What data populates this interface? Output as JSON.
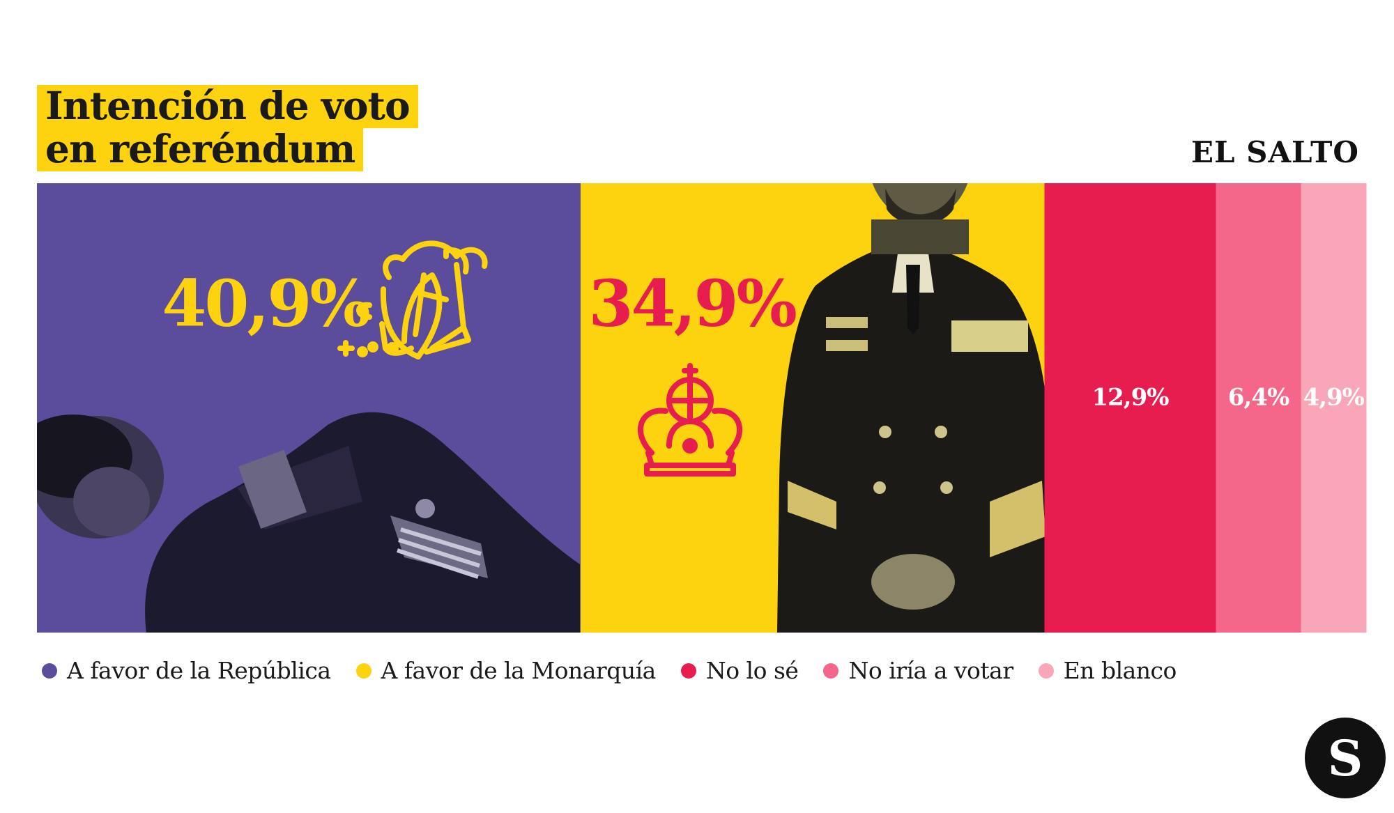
{
  "title": {
    "line1": "Intención de voto",
    "line2": "en referéndum"
  },
  "brand": "EL SALTO",
  "logo_letter": "S",
  "chart_data": {
    "type": "bar",
    "orientation": "horizontal-stacked",
    "title": "Intención de voto en referéndum",
    "categories": [
      "A favor de la República",
      "A favor de la Monarquía",
      "No lo sé",
      "No iría a votar",
      "En blanco"
    ],
    "values": [
      40.9,
      34.9,
      12.9,
      6.4,
      4.9
    ],
    "labels": [
      "40,9%",
      "34,9%",
      "12,9%",
      "6,4%",
      "4,9%"
    ],
    "colors": [
      "#5b4c9c",
      "#fdd20f",
      "#e71d4f",
      "#f4678a",
      "#f9a6b8"
    ],
    "label_colors": [
      "#fdd20f",
      "#e71d4f",
      "#ffffff",
      "#ffffff",
      "#ffffff"
    ],
    "legend_position": "bottom",
    "icons": [
      "broken-crown-icon",
      "crown-icon"
    ]
  },
  "photos": [
    "king-lying-photo",
    "king-standing-photo"
  ]
}
